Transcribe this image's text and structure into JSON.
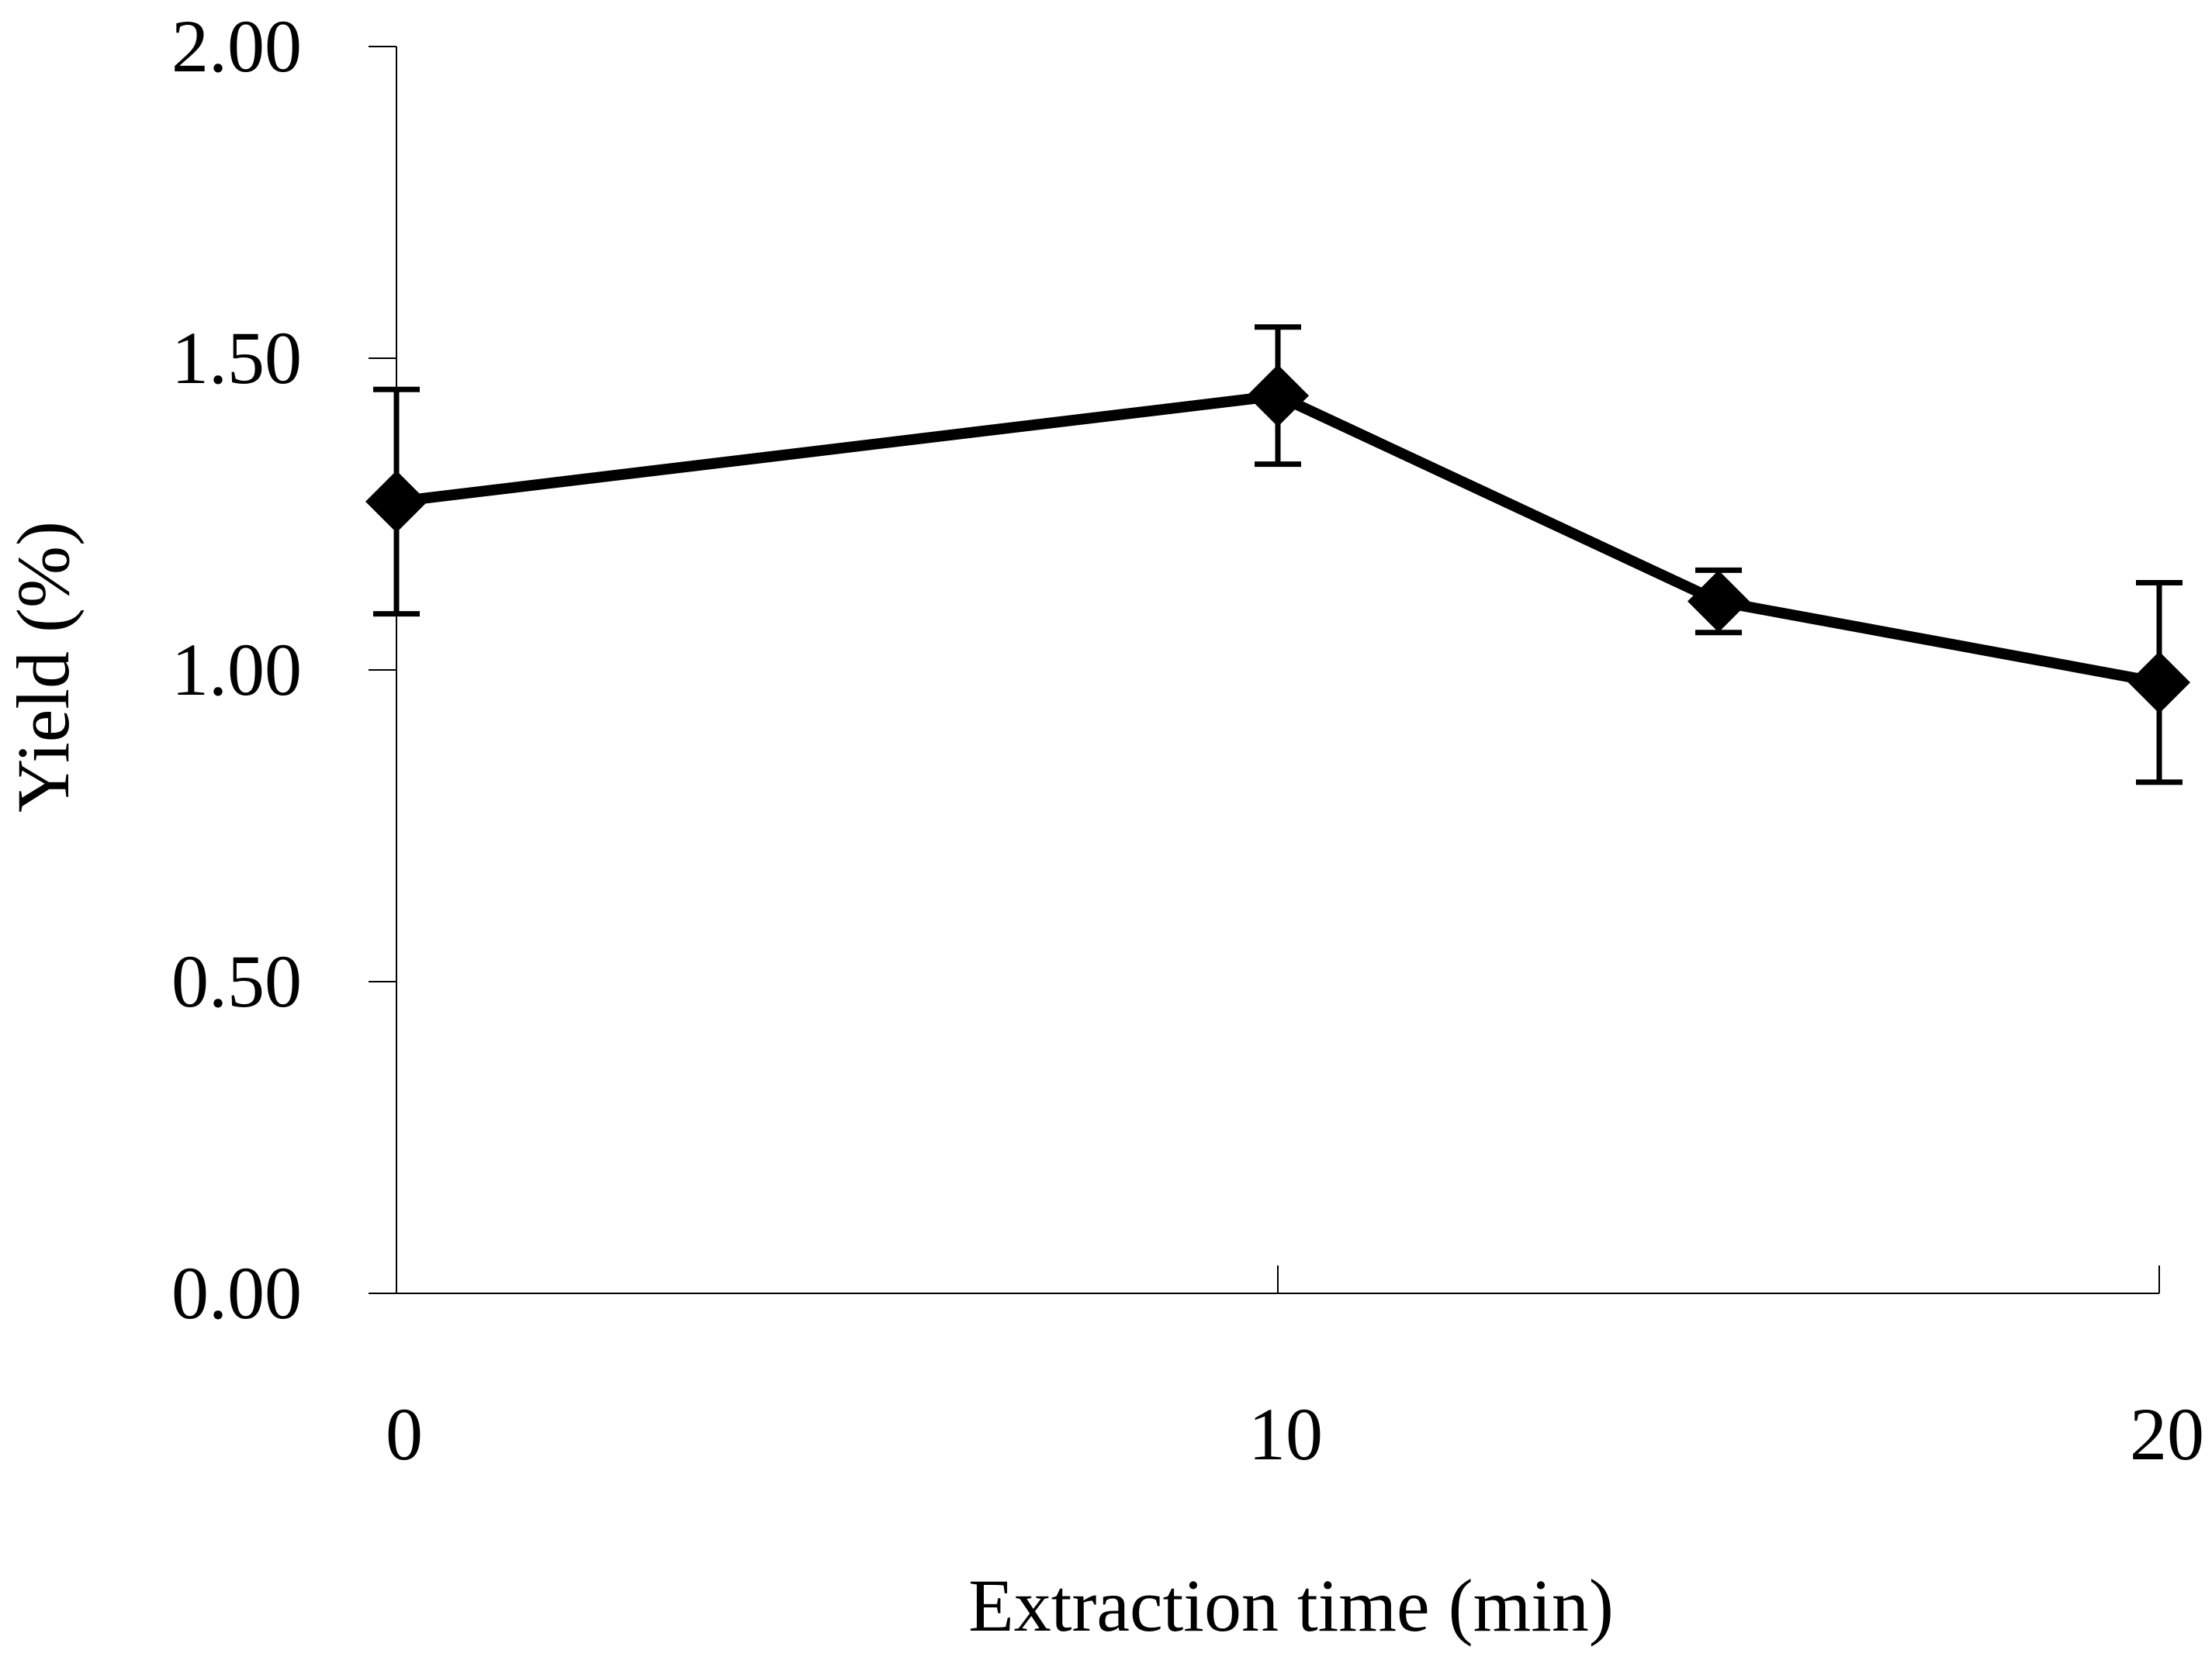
{
  "chart_data": {
    "type": "line",
    "title": "",
    "xlabel": "Extraction time (min)",
    "ylabel": "Yield (%)",
    "xlim": [
      0,
      20
    ],
    "ylim": [
      0.0,
      2.0
    ],
    "grid": false,
    "x_ticks": [
      0,
      10,
      20
    ],
    "x_tick_labels": [
      "0",
      "10",
      "20"
    ],
    "y_ticks": [
      0.0,
      0.5,
      1.0,
      1.5,
      2.0
    ],
    "y_tick_labels": [
      "0.00",
      "0.50",
      "1.00",
      "1.50",
      "2.00"
    ],
    "series": [
      {
        "name": "Yield",
        "x": [
          0,
          10,
          15,
          20
        ],
        "values": [
          1.27,
          1.44,
          1.11,
          0.98
        ],
        "error": [
          0.18,
          0.11,
          0.05,
          0.16
        ],
        "marker": "diamond",
        "color": "#000000"
      }
    ]
  }
}
